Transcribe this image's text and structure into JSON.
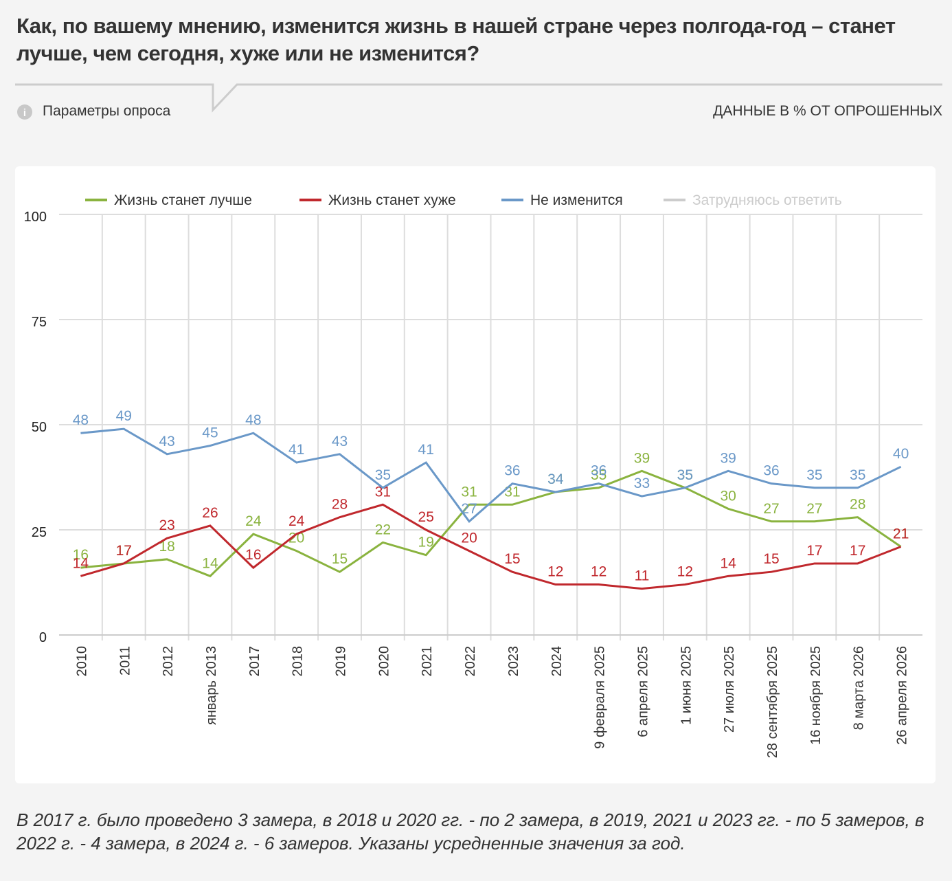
{
  "chart_data": {
    "type": "line",
    "title": "Как, по вашему мнению, изменится жизнь в нашей стране через полгода-год – станет лучше, чем сегодня, хуже или не изменится?",
    "subtitle": "Параметры опроса",
    "units_note": "ДАННЫЕ В % ОТ ОПРОШЕННЫХ",
    "footnote": "В 2017 г. было проведено 3 замера, в 2018 и 2020 гг. - по 2 замера, в 2019, 2021 и 2023 гг. - по 5 замеров, в 2022 г. - 4 замера, в 2024 г. - 6 замеров. Указаны усредненные значения за год.",
    "categories": [
      "2010",
      "2011",
      "2012",
      "январь 2013",
      "2017",
      "2018",
      "2019",
      "2020",
      "2021",
      "2022",
      "2023",
      "2024",
      "9 февраля 2025",
      "6 апреля 2025",
      "1 июня 2025",
      "27 июля 2025",
      "28 сентября 2025",
      "16 ноября 2025",
      "8 марта 2026",
      "26 апреля 2026"
    ],
    "series": [
      {
        "name": "Жизнь станет лучше",
        "color": "#8ab33f",
        "visible": true,
        "values": [
          16,
          17,
          18,
          14,
          24,
          20,
          15,
          22,
          19,
          31,
          31,
          34,
          35,
          39,
          35,
          30,
          27,
          27,
          28,
          21
        ]
      },
      {
        "name": "Жизнь станет хуже",
        "color": "#c0282d",
        "visible": true,
        "values": [
          14,
          17,
          23,
          26,
          16,
          24,
          28,
          31,
          25,
          20,
          15,
          12,
          12,
          11,
          12,
          14,
          15,
          17,
          17,
          21
        ]
      },
      {
        "name": "Не изменится",
        "color": "#6a98c8",
        "visible": true,
        "values": [
          48,
          49,
          43,
          45,
          48,
          41,
          43,
          35,
          41,
          27,
          36,
          34,
          36,
          33,
          35,
          39,
          36,
          35,
          35,
          40
        ]
      },
      {
        "name": "Затрудняюсь ответить",
        "color": "#cccccc",
        "visible": false,
        "values": [
          null,
          null,
          null,
          null,
          null,
          null,
          null,
          null,
          null,
          null,
          null,
          null,
          null,
          null,
          null,
          null,
          null,
          null,
          null,
          null
        ]
      }
    ],
    "ylim": [
      0,
      100
    ],
    "yticks": [
      0,
      25,
      50,
      75,
      100
    ],
    "grid": true,
    "legend": "top"
  }
}
